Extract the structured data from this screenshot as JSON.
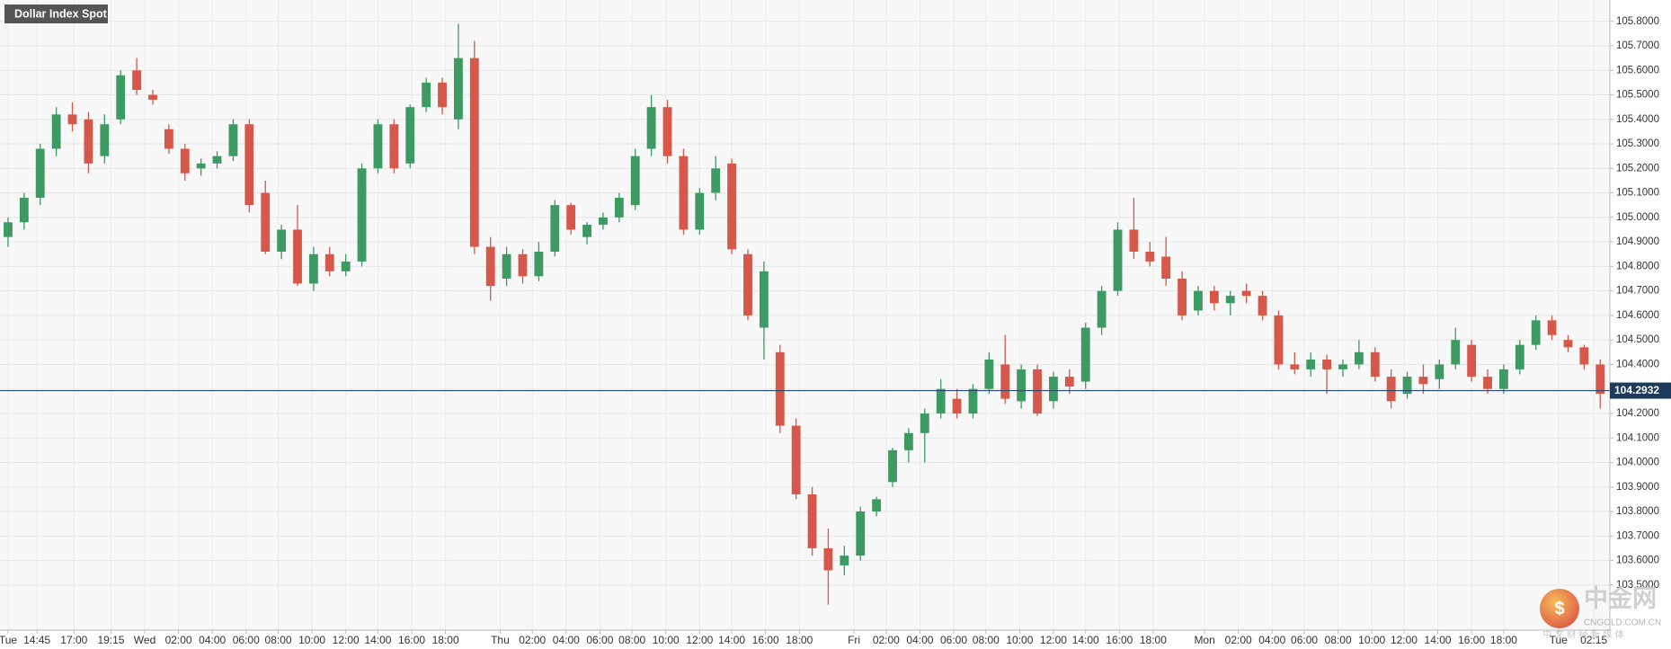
{
  "chart_data": {
    "type": "candlestick",
    "title": "Dollar Index Spot",
    "up_color": "#3d9a62",
    "down_color": "#d6584a",
    "grid": true,
    "ylim": [
      103.316,
      105.887
    ],
    "yticks": [
      {
        "value": 103.5,
        "label": "103.5000"
      },
      {
        "value": 103.6,
        "label": "103.6000"
      },
      {
        "value": 103.7,
        "label": "103.7000"
      },
      {
        "value": 103.8,
        "label": "103.8000"
      },
      {
        "value": 103.9,
        "label": "103.9000"
      },
      {
        "value": 104.0,
        "label": "104.0000"
      },
      {
        "value": 104.1,
        "label": "104.1000"
      },
      {
        "value": 104.2,
        "label": "104.2000"
      },
      {
        "value": 104.3,
        "label": "104.3000"
      },
      {
        "value": 104.4,
        "label": "104.4000"
      },
      {
        "value": 104.5,
        "label": "104.5000"
      },
      {
        "value": 104.6,
        "label": "104.6000"
      },
      {
        "value": 104.7,
        "label": "104.7000"
      },
      {
        "value": 104.8,
        "label": "104.8000"
      },
      {
        "value": 104.9,
        "label": "104.9000"
      },
      {
        "value": 105.0,
        "label": "105.0000"
      },
      {
        "value": 105.1,
        "label": "105.1000"
      },
      {
        "value": 105.2,
        "label": "105.2000"
      },
      {
        "value": 105.3,
        "label": "105.3000"
      },
      {
        "value": 105.4,
        "label": "105.4000"
      },
      {
        "value": 105.5,
        "label": "105.5000"
      },
      {
        "value": 105.6,
        "label": "105.6000"
      },
      {
        "value": 105.7,
        "label": "105.7000"
      },
      {
        "value": 105.8,
        "label": "105.8000"
      }
    ],
    "xlim": [
      -0.5,
      99.6
    ],
    "xticks": [
      {
        "value": 0.0,
        "label": "Tue"
      },
      {
        "value": 1.8,
        "label": "14:45"
      },
      {
        "value": 4.1,
        "label": "17:00"
      },
      {
        "value": 6.4,
        "label": "19:15"
      },
      {
        "value": 8.5,
        "label": "Wed"
      },
      {
        "value": 10.6,
        "label": "02:00"
      },
      {
        "value": 12.7,
        "label": "04:00"
      },
      {
        "value": 14.8,
        "label": "06:00"
      },
      {
        "value": 16.8,
        "label": "08:00"
      },
      {
        "value": 18.9,
        "label": "10:00"
      },
      {
        "value": 21.0,
        "label": "12:00"
      },
      {
        "value": 23.0,
        "label": "14:00"
      },
      {
        "value": 25.1,
        "label": "16:00"
      },
      {
        "value": 27.2,
        "label": "18:00"
      },
      {
        "value": 30.6,
        "label": "Thu"
      },
      {
        "value": 32.6,
        "label": "02:00"
      },
      {
        "value": 34.7,
        "label": "04:00"
      },
      {
        "value": 36.8,
        "label": "06:00"
      },
      {
        "value": 38.8,
        "label": "08:00"
      },
      {
        "value": 40.9,
        "label": "10:00"
      },
      {
        "value": 43.0,
        "label": "12:00"
      },
      {
        "value": 45.0,
        "label": "14:00"
      },
      {
        "value": 47.1,
        "label": "16:00"
      },
      {
        "value": 49.2,
        "label": "18:00"
      },
      {
        "value": 52.6,
        "label": "Fri"
      },
      {
        "value": 54.6,
        "label": "02:00"
      },
      {
        "value": 56.7,
        "label": "04:00"
      },
      {
        "value": 58.8,
        "label": "06:00"
      },
      {
        "value": 60.8,
        "label": "08:00"
      },
      {
        "value": 62.9,
        "label": "10:00"
      },
      {
        "value": 65.0,
        "label": "12:00"
      },
      {
        "value": 67.0,
        "label": "14:00"
      },
      {
        "value": 69.1,
        "label": "16:00"
      },
      {
        "value": 71.2,
        "label": "18:00"
      },
      {
        "value": 74.4,
        "label": "Mon"
      },
      {
        "value": 76.5,
        "label": "02:00"
      },
      {
        "value": 78.6,
        "label": "04:00"
      },
      {
        "value": 80.6,
        "label": "06:00"
      },
      {
        "value": 82.7,
        "label": "08:00"
      },
      {
        "value": 84.8,
        "label": "10:00"
      },
      {
        "value": 86.8,
        "label": "12:00"
      },
      {
        "value": 88.9,
        "label": "14:00"
      },
      {
        "value": 91.0,
        "label": "16:00"
      },
      {
        "value": 93.0,
        "label": "18:00"
      },
      {
        "value": 96.4,
        "label": "Tue"
      },
      {
        "value": 98.6,
        "label": "02:15"
      }
    ],
    "last_price": 104.2932,
    "candles": [
      [
        104.92,
        105.0,
        104.88,
        104.98
      ],
      [
        104.98,
        105.1,
        104.95,
        105.08
      ],
      [
        105.08,
        105.3,
        105.05,
        105.28
      ],
      [
        105.28,
        105.45,
        105.25,
        105.42
      ],
      [
        105.42,
        105.47,
        105.35,
        105.38
      ],
      [
        105.4,
        105.43,
        105.18,
        105.22
      ],
      [
        105.25,
        105.42,
        105.22,
        105.38
      ],
      [
        105.4,
        105.6,
        105.38,
        105.58
      ],
      [
        105.6,
        105.65,
        105.5,
        105.52
      ],
      [
        105.5,
        105.52,
        105.46,
        105.48
      ],
      [
        105.36,
        105.38,
        105.26,
        105.28
      ],
      [
        105.28,
        105.3,
        105.15,
        105.18
      ],
      [
        105.2,
        105.24,
        105.17,
        105.22
      ],
      [
        105.22,
        105.27,
        105.2,
        105.25
      ],
      [
        105.25,
        105.4,
        105.23,
        105.38
      ],
      [
        105.38,
        105.4,
        105.02,
        105.05
      ],
      [
        105.1,
        105.15,
        104.85,
        104.86
      ],
      [
        104.86,
        104.97,
        104.83,
        104.95
      ],
      [
        104.95,
        105.05,
        104.72,
        104.73
      ],
      [
        104.73,
        104.88,
        104.7,
        104.85
      ],
      [
        104.85,
        104.88,
        104.76,
        104.78
      ],
      [
        104.78,
        104.85,
        104.76,
        104.82
      ],
      [
        104.82,
        105.22,
        104.8,
        105.2
      ],
      [
        105.2,
        105.4,
        105.18,
        105.38
      ],
      [
        105.38,
        105.4,
        105.18,
        105.2
      ],
      [
        105.22,
        105.46,
        105.2,
        105.45
      ],
      [
        105.45,
        105.57,
        105.43,
        105.55
      ],
      [
        105.55,
        105.57,
        105.42,
        105.45
      ],
      [
        105.4,
        105.79,
        105.36,
        105.65
      ],
      [
        105.65,
        105.72,
        104.85,
        104.88
      ],
      [
        104.88,
        104.92,
        104.66,
        104.72
      ],
      [
        104.75,
        104.88,
        104.72,
        104.85
      ],
      [
        104.85,
        104.87,
        104.73,
        104.76
      ],
      [
        104.76,
        104.9,
        104.74,
        104.86
      ],
      [
        104.86,
        105.07,
        104.84,
        105.05
      ],
      [
        105.05,
        105.06,
        104.93,
        104.95
      ],
      [
        104.92,
        104.98,
        104.89,
        104.97
      ],
      [
        104.97,
        105.02,
        104.95,
        105.0
      ],
      [
        105.0,
        105.1,
        104.98,
        105.08
      ],
      [
        105.05,
        105.28,
        105.03,
        105.25
      ],
      [
        105.28,
        105.5,
        105.25,
        105.45
      ],
      [
        105.45,
        105.48,
        105.22,
        105.25
      ],
      [
        105.25,
        105.28,
        104.93,
        104.95
      ],
      [
        104.95,
        105.12,
        104.93,
        105.1
      ],
      [
        105.1,
        105.25,
        105.07,
        105.2
      ],
      [
        105.22,
        105.24,
        104.85,
        104.87
      ],
      [
        104.85,
        104.87,
        104.58,
        104.6
      ],
      [
        104.55,
        104.82,
        104.42,
        104.78
      ],
      [
        104.45,
        104.48,
        104.12,
        104.15
      ],
      [
        104.15,
        104.18,
        103.85,
        103.87
      ],
      [
        103.87,
        103.9,
        103.62,
        103.65
      ],
      [
        103.65,
        103.73,
        103.42,
        103.56
      ],
      [
        103.58,
        103.66,
        103.54,
        103.62
      ],
      [
        103.62,
        103.82,
        103.6,
        103.8
      ],
      [
        103.8,
        103.86,
        103.78,
        103.85
      ],
      [
        103.92,
        104.06,
        103.9,
        104.05
      ],
      [
        104.05,
        104.14,
        104.0,
        104.12
      ],
      [
        104.12,
        104.22,
        104.0,
        104.2
      ],
      [
        104.2,
        104.34,
        104.18,
        104.3
      ],
      [
        104.26,
        104.3,
        104.18,
        104.2
      ],
      [
        104.2,
        104.32,
        104.18,
        104.3
      ],
      [
        104.3,
        104.45,
        104.28,
        104.42
      ],
      [
        104.4,
        104.52,
        104.24,
        104.26
      ],
      [
        104.25,
        104.4,
        104.22,
        104.38
      ],
      [
        104.38,
        104.4,
        104.19,
        104.2
      ],
      [
        104.25,
        104.37,
        104.22,
        104.35
      ],
      [
        104.35,
        104.38,
        104.28,
        104.31
      ],
      [
        104.33,
        104.57,
        104.3,
        104.55
      ],
      [
        104.55,
        104.72,
        104.52,
        104.7
      ],
      [
        104.7,
        104.98,
        104.68,
        104.95
      ],
      [
        104.95,
        105.08,
        104.83,
        104.86
      ],
      [
        104.86,
        104.9,
        104.8,
        104.82
      ],
      [
        104.84,
        104.92,
        104.72,
        104.75
      ],
      [
        104.75,
        104.78,
        104.58,
        104.6
      ],
      [
        104.62,
        104.72,
        104.6,
        104.7
      ],
      [
        104.7,
        104.72,
        104.62,
        104.65
      ],
      [
        104.65,
        104.7,
        104.6,
        104.68
      ],
      [
        104.7,
        104.73,
        104.65,
        104.68
      ],
      [
        104.68,
        104.7,
        104.58,
        104.6
      ],
      [
        104.6,
        104.62,
        104.38,
        104.4
      ],
      [
        104.4,
        104.45,
        104.36,
        104.38
      ],
      [
        104.38,
        104.45,
        104.35,
        104.42
      ],
      [
        104.42,
        104.44,
        104.28,
        104.38
      ],
      [
        104.38,
        104.42,
        104.35,
        104.4
      ],
      [
        104.4,
        104.5,
        104.38,
        104.45
      ],
      [
        104.45,
        104.47,
        104.33,
        104.35
      ],
      [
        104.35,
        104.38,
        104.22,
        104.25
      ],
      [
        104.28,
        104.37,
        104.26,
        104.35
      ],
      [
        104.35,
        104.4,
        104.28,
        104.32
      ],
      [
        104.34,
        104.42,
        104.3,
        104.4
      ],
      [
        104.4,
        104.55,
        104.38,
        104.5
      ],
      [
        104.48,
        104.5,
        104.33,
        104.35
      ],
      [
        104.35,
        104.38,
        104.28,
        104.3
      ],
      [
        104.3,
        104.4,
        104.28,
        104.38
      ],
      [
        104.38,
        104.5,
        104.36,
        104.48
      ],
      [
        104.48,
        104.6,
        104.46,
        104.58
      ],
      [
        104.58,
        104.6,
        104.5,
        104.52
      ],
      [
        104.5,
        104.52,
        104.45,
        104.47
      ],
      [
        104.47,
        104.48,
        104.38,
        104.4
      ],
      [
        104.4,
        104.42,
        104.22,
        104.28
      ]
    ]
  },
  "watermark": {
    "name": "中金网",
    "domain": "CNGOLD.COM.CN",
    "tagline": "中 文 财 经 新 媒 体"
  }
}
